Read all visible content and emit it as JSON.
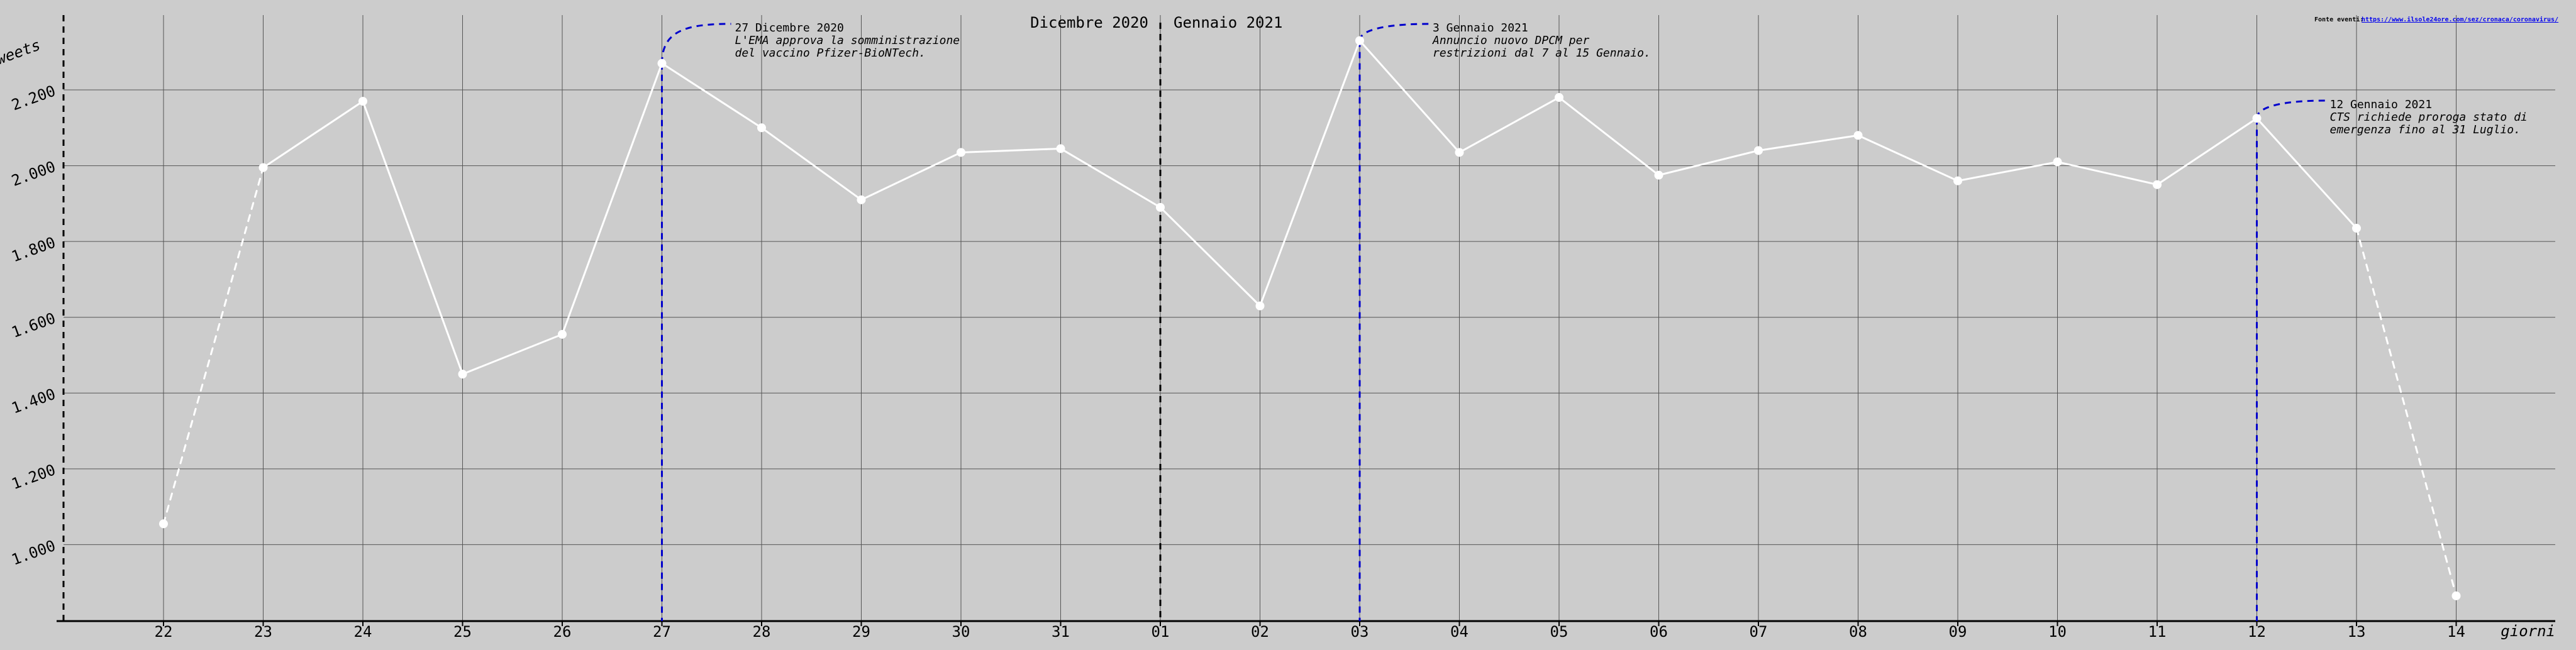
{
  "chart_data": {
    "type": "line",
    "xlabel": "giorni",
    "ylabel": "tweets",
    "ylim": [
      800,
      2400
    ],
    "yticks": [
      1000,
      1200,
      1400,
      1600,
      1800,
      2000,
      2200
    ],
    "ytick_labels": [
      "1.000",
      "1.200",
      "1.400",
      "1.600",
      "1.800",
      "2.000",
      "2.200"
    ],
    "grid": true,
    "categories": [
      "22",
      "23",
      "24",
      "25",
      "26",
      "27",
      "28",
      "29",
      "30",
      "31",
      "01",
      "02",
      "03",
      "04",
      "05",
      "06",
      "07",
      "08",
      "09",
      "10",
      "11",
      "12",
      "13",
      "14"
    ],
    "values": [
      1055,
      1995,
      2170,
      1450,
      1555,
      2270,
      2100,
      1910,
      2035,
      2045,
      1890,
      1630,
      2330,
      2035,
      2180,
      1975,
      2040,
      2080,
      1960,
      2010,
      1950,
      2125,
      1835,
      865
    ],
    "dashed_segments": [
      [
        0,
        1
      ],
      [
        22,
        23
      ]
    ],
    "month_labels": [
      {
        "text": "Dicembre 2020",
        "side": "left"
      },
      {
        "text": "Gennaio 2021",
        "side": "right"
      }
    ],
    "month_divider_index": 10,
    "annotations": [
      {
        "index": 5,
        "date": "27 Dicembre 2020",
        "lines": [
          "L'EMA approva la somministrazione",
          "del vaccino Pfizer-BioNTech."
        ]
      },
      {
        "index": 12,
        "date": "3 Gennaio 2021",
        "lines": [
          "Annuncio nuovo DPCM per",
          "restrizioni dal 7 al 15 Gennaio."
        ]
      },
      {
        "index": 21,
        "date": "12 Gennaio 2021",
        "lines": [
          "CTS richiede proroga stato di",
          "emergenza fino al 31 Luglio."
        ]
      }
    ],
    "source": {
      "label": "Fonte eventi:",
      "link": "https://www.ilsole24ore.com/sez/cronaca/coronavirus/"
    }
  },
  "colors": {
    "background": "#cccccc",
    "line": "#ffffff",
    "grid": "#555555",
    "event": "#0000cc",
    "axis": "#000000"
  }
}
